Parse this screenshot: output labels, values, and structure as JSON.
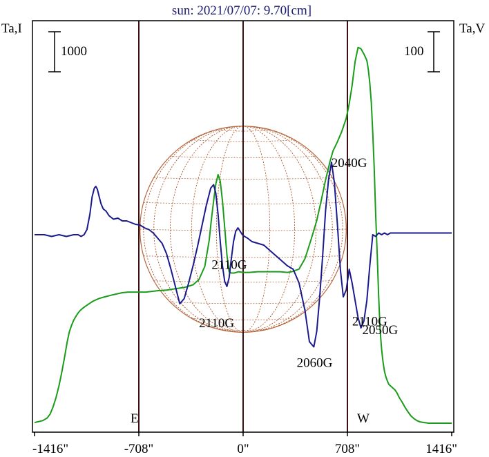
{
  "chart_data": {
    "type": "line",
    "title": "sun: 2021/07/07: 9.70[cm]",
    "left_axis_label": "Ta,I",
    "right_axis_label": "Ta,V",
    "left_scale_bar": "1000",
    "right_scale_bar": "100",
    "x_ticks": [
      {
        "value": -1416,
        "label": "-1416\""
      },
      {
        "value": -708,
        "label": "-708\""
      },
      {
        "value": 0,
        "label": "0\""
      },
      {
        "value": 708,
        "label": "708\""
      },
      {
        "value": 1416,
        "label": "1416\""
      }
    ],
    "xlim": [
      -1416,
      1416
    ],
    "vertical_markers": [
      {
        "x": -708,
        "label": "E"
      },
      {
        "x": 0,
        "label": ""
      },
      {
        "x": 708,
        "label": "W"
      }
    ],
    "solar_disk": {
      "radius_arcsec": 700,
      "color": "#b5653c"
    },
    "series": [
      {
        "color": "#1a9c1a",
        "x": [
          -1416,
          -1360,
          -1330,
          -1310,
          -1290,
          -1270,
          -1250,
          -1230,
          -1210,
          -1195,
          -1180,
          -1165,
          -1150,
          -1135,
          -1120,
          -1105,
          -1090,
          -1075,
          -1060,
          -1040,
          -1020,
          -1000,
          -980,
          -950,
          -900,
          -860,
          -820,
          -780,
          -740,
          -700,
          -660,
          -620,
          -580,
          -520,
          -460,
          -400,
          -340,
          -300,
          -260,
          -230,
          -215,
          -200,
          -185,
          -170,
          -155,
          -140,
          -125,
          -110,
          -95,
          -80,
          -60,
          -30,
          0,
          40,
          100,
          200,
          250,
          300,
          330,
          380,
          420,
          460,
          500,
          530,
          560,
          590,
          610,
          640,
          670,
          700,
          720,
          740,
          760,
          780,
          800,
          820,
          840,
          850,
          860,
          870,
          880,
          890,
          900,
          910,
          920,
          930,
          940,
          950,
          960,
          970,
          980,
          990,
          1000,
          1010,
          1020,
          1030,
          1045,
          1060,
          1080,
          1100,
          1120,
          1140,
          1160,
          1180,
          1200,
          1230,
          1260,
          1300,
          1340,
          1380,
          1416
        ],
        "y": [
          10,
          25,
          45,
          75,
          130,
          200,
          290,
          400,
          520,
          620,
          700,
          750,
          790,
          820,
          845,
          865,
          880,
          893,
          905,
          920,
          935,
          945,
          955,
          965,
          980,
          990,
          1000,
          1005,
          1005,
          1005,
          1005,
          1010,
          1015,
          1020,
          1030,
          1040,
          1060,
          1100,
          1200,
          1400,
          1560,
          1700,
          1830,
          1900,
          1850,
          1700,
          1500,
          1290,
          1160,
          1150,
          1150,
          1160,
          1155,
          1155,
          1160,
          1160,
          1160,
          1155,
          1160,
          1180,
          1260,
          1400,
          1550,
          1700,
          1860,
          2000,
          2080,
          2150,
          2230,
          2330,
          2440,
          2580,
          2760,
          2870,
          2860,
          2820,
          2770,
          2700,
          2600,
          2450,
          2220,
          1950,
          1600,
          1300,
          980,
          720,
          570,
          470,
          400,
          355,
          325,
          300,
          290,
          280,
          270,
          260,
          235,
          200,
          165,
          125,
          90,
          60,
          40,
          25,
          15,
          10,
          5,
          5,
          5,
          5,
          5
        ]
      },
      {
        "color": "#1a1a8c",
        "x": [
          -1416,
          -1350,
          -1300,
          -1250,
          -1200,
          -1150,
          -1120,
          -1100,
          -1080,
          -1060,
          -1040,
          -1025,
          -1010,
          -1000,
          -990,
          -980,
          -965,
          -950,
          -930,
          -910,
          -880,
          -850,
          -820,
          -790,
          -760,
          -730,
          -700,
          -670,
          -640,
          -610,
          -580,
          -550,
          -520,
          -490,
          -460,
          -430,
          -400,
          -370,
          -340,
          -310,
          -280,
          -250,
          -220,
          -200,
          -185,
          -170,
          -155,
          -140,
          -125,
          -110,
          -95,
          -80,
          -65,
          -50,
          -35,
          -20,
          -5,
          10,
          30,
          60,
          100,
          140,
          180,
          220,
          260,
          300,
          340,
          380,
          420,
          450,
          480,
          500,
          520,
          540,
          560,
          580,
          600,
          620,
          640,
          660,
          680,
          700,
          720,
          740,
          760,
          780,
          800,
          820,
          840,
          860,
          880,
          900,
          920,
          940,
          960,
          980,
          1000,
          1020,
          1040,
          1080,
          1120,
          1200,
          1300,
          1416
        ],
        "y": [
          0,
          0,
          -5,
          0,
          -5,
          0,
          0,
          -5,
          0,
          15,
          60,
          110,
          135,
          140,
          132,
          115,
          90,
          75,
          68,
          55,
          45,
          48,
          40,
          40,
          35,
          30,
          28,
          20,
          15,
          5,
          -10,
          -25,
          -55,
          -100,
          -150,
          -200,
          -185,
          -140,
          -90,
          -35,
          25,
          85,
          135,
          145,
          120,
          60,
          -20,
          -90,
          -135,
          -150,
          -125,
          -70,
          -20,
          10,
          20,
          10,
          0,
          -5,
          -10,
          -20,
          -25,
          -30,
          -45,
          -60,
          -75,
          -90,
          -100,
          -140,
          -220,
          -310,
          -325,
          -280,
          -180,
          -60,
          70,
          160,
          210,
          150,
          30,
          -100,
          -180,
          -160,
          -100,
          -140,
          -190,
          -240,
          -270,
          -250,
          -190,
          -90,
          0,
          -5,
          5,
          0,
          5,
          0,
          5,
          5,
          5,
          5,
          5,
          5,
          5,
          5
        ]
      }
    ],
    "annotations": [
      {
        "text": "2110G",
        "x": -94,
        "series": 0,
        "y": 1140
      },
      {
        "text": "2040G",
        "x": 720,
        "series": 1,
        "y": 180
      },
      {
        "text": "2110G",
        "x": -180,
        "series": 1,
        "y": -220
      },
      {
        "text": "2060G",
        "x": 485,
        "series": 1,
        "y": -335
      },
      {
        "text": "2110G",
        "x": 860,
        "series": 1,
        "y": -215
      },
      {
        "text": "2050G",
        "x": 930,
        "series": 1,
        "y": -240
      }
    ]
  }
}
